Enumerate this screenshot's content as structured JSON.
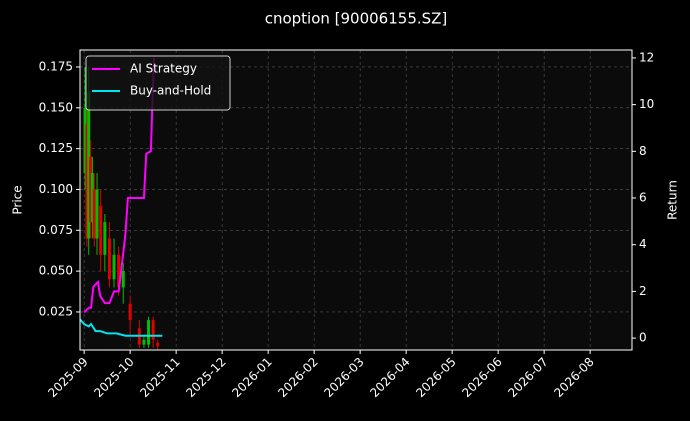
{
  "chart_data": {
    "type": "line",
    "title": "cnoption [90006155.SZ]",
    "ylabel": "Price",
    "y2label": "Return",
    "xlim": [
      -0.09,
      11.91
    ],
    "xticks": [
      {
        "value": 0,
        "label": "2025-09"
      },
      {
        "value": 1,
        "label": "2025-10"
      },
      {
        "value": 2,
        "label": "2025-11"
      },
      {
        "value": 3,
        "label": "2025-12"
      },
      {
        "value": 4,
        "label": "2026-01"
      },
      {
        "value": 5,
        "label": "2026-02"
      },
      {
        "value": 6,
        "label": "2026-03"
      },
      {
        "value": 7,
        "label": "2026-04"
      },
      {
        "value": 8,
        "label": "2026-05"
      },
      {
        "value": 9,
        "label": "2026-06"
      },
      {
        "value": 10,
        "label": "2026-07"
      },
      {
        "value": 11,
        "label": "2026-08"
      }
    ],
    "ylim": [
      0.0017,
      0.1854
    ],
    "yticks": [
      0.025,
      {
        "value": 0.05,
        "label": "0.050"
      },
      0.075,
      {
        "value": 0.1,
        "label": "0.100"
      },
      0.125,
      {
        "value": 0.15,
        "label": "0.150"
      },
      0.175
    ],
    "y2lim": [
      -0.51,
      12.34
    ],
    "y2ticks": [
      0,
      2,
      4,
      6,
      8,
      10,
      12
    ],
    "grid": true,
    "legend": "upper left",
    "candles": {
      "up_color": "#00c000",
      "down_color": "#e00000",
      "x": [
        0.02,
        0.06,
        0.1,
        0.14,
        0.18,
        0.22,
        0.28,
        0.36,
        0.45,
        0.55,
        0.65,
        0.75,
        0.85,
        1.0,
        1.2,
        1.3,
        1.4,
        1.5,
        1.6
      ],
      "open": [
        0.11,
        0.14,
        0.07,
        0.12,
        0.08,
        0.1,
        0.07,
        0.09,
        0.06,
        0.07,
        0.045,
        0.06,
        0.04,
        0.03,
        0.015,
        0.005,
        0.005,
        0.02,
        0.006
      ],
      "close": [
        0.15,
        0.07,
        0.16,
        0.08,
        0.11,
        0.07,
        0.1,
        0.06,
        0.08,
        0.045,
        0.06,
        0.04,
        0.05,
        0.02,
        0.005,
        0.008,
        0.02,
        0.008,
        0.004
      ],
      "high": [
        0.175,
        0.15,
        0.175,
        0.13,
        0.12,
        0.11,
        0.11,
        0.1,
        0.085,
        0.08,
        0.07,
        0.065,
        0.055,
        0.035,
        0.02,
        0.01,
        0.022,
        0.022,
        0.008
      ],
      "low": [
        0.1,
        0.065,
        0.06,
        0.07,
        0.07,
        0.065,
        0.06,
        0.05,
        0.05,
        0.04,
        0.04,
        0.035,
        0.03,
        0.01,
        0.003,
        0.003,
        0.003,
        0.003,
        0.002
      ]
    },
    "series": [
      {
        "name": "AI Strategy",
        "color": "#ff00ff",
        "axis": "y2",
        "x": [
          0,
          0.1,
          0.15,
          0.2,
          0.3,
          0.35,
          0.45,
          0.55,
          0.65,
          0.75,
          0.8,
          0.9,
          0.95,
          1.0,
          1.3,
          1.35,
          1.45,
          1.5,
          1.52
        ],
        "values": [
          1.1,
          1.3,
          1.3,
          2.2,
          2.4,
          1.8,
          1.5,
          1.5,
          2.0,
          2.0,
          2.8,
          4.5,
          6.0,
          6.0,
          6.0,
          7.9,
          8.0,
          11.0,
          12.0
        ]
      },
      {
        "name": "Buy-and-Hold",
        "color": "#00e5ee",
        "axis": "y2",
        "x": [
          -0.09,
          0,
          0.1,
          0.15,
          0.25,
          0.35,
          0.5,
          0.7,
          0.9,
          1.2,
          1.7
        ],
        "values": [
          0.8,
          0.6,
          0.5,
          0.6,
          0.3,
          0.3,
          0.2,
          0.2,
          0.1,
          0.1,
          0.1
        ]
      }
    ]
  }
}
